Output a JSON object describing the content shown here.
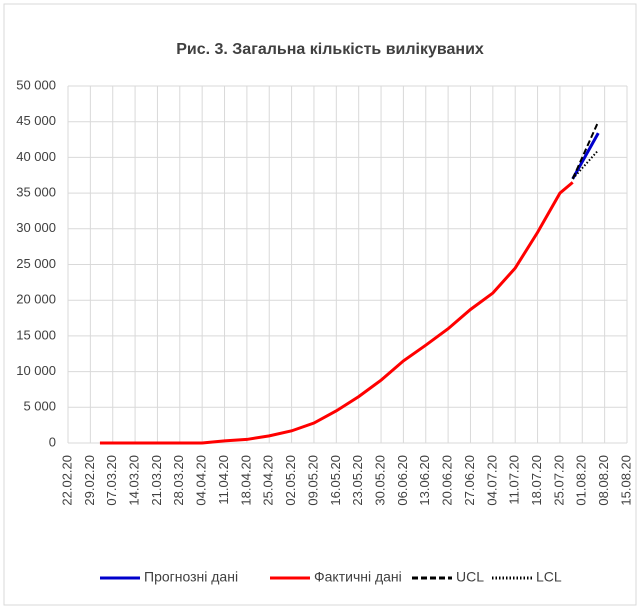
{
  "chart_data": {
    "type": "line",
    "title": "Рис. 3. Загальна кількість вилікуваних",
    "xlim": [
      "22.02.20",
      "15.08.20"
    ],
    "xticks": [
      "22.02.20",
      "29.02.20",
      "07.03.20",
      "14.03.20",
      "21.03.20",
      "28.03.20",
      "04.04.20",
      "11.04.20",
      "18.04.20",
      "25.04.20",
      "02.05.20",
      "09.05.20",
      "16.05.20",
      "23.05.20",
      "30.05.20",
      "06.06.20",
      "13.06.20",
      "20.06.20",
      "27.06.20",
      "04.07.20",
      "11.07.20",
      "18.07.20",
      "25.07.20",
      "01.08.20",
      "08.08.20",
      "15.08.20"
    ],
    "ylim": [
      0,
      50000
    ],
    "yticks": [
      {
        "value": 0,
        "label": "0"
      },
      {
        "value": 5000,
        "label": "5 000"
      },
      {
        "value": 10000,
        "label": "10 000"
      },
      {
        "value": 15000,
        "label": "15 000"
      },
      {
        "value": 20000,
        "label": "20 000"
      },
      {
        "value": 25000,
        "label": "25 000"
      },
      {
        "value": 30000,
        "label": "30 000"
      },
      {
        "value": 35000,
        "label": "35 000"
      },
      {
        "value": 40000,
        "label": "40 000"
      },
      {
        "value": 45000,
        "label": "45 000"
      },
      {
        "value": 50000,
        "label": "50 000"
      }
    ],
    "grid": true,
    "legend": "bottom",
    "series": [
      {
        "name": "Прогнозні дані",
        "color": "#0000cc",
        "dash": "solid",
        "x": [
          "29.07.20",
          "06.08.20"
        ],
        "values": [
          37000,
          43400
        ]
      },
      {
        "name": "Фактичні дані",
        "color": "#ff0000",
        "dash": "solid",
        "x": [
          "03.03.20",
          "04.04.20",
          "11.04.20",
          "18.04.20",
          "25.04.20",
          "02.05.20",
          "09.05.20",
          "16.05.20",
          "23.05.20",
          "30.05.20",
          "06.06.20",
          "13.06.20",
          "20.06.20",
          "27.06.20",
          "04.07.20",
          "11.07.20",
          "18.07.20",
          "25.07.20",
          "29.07.20"
        ],
        "values": [
          0,
          0,
          300,
          500,
          1000,
          1700,
          2800,
          4500,
          6500,
          8800,
          11500,
          13700,
          16000,
          18700,
          21000,
          24500,
          29500,
          35000,
          36500
        ]
      },
      {
        "name": "UCL",
        "color": "#000000",
        "dash": "dashed",
        "x": [
          "29.07.20",
          "06.08.20"
        ],
        "values": [
          37000,
          45000
        ]
      },
      {
        "name": "LCL",
        "color": "#000000",
        "dash": "dotted",
        "x": [
          "29.07.20",
          "06.08.20"
        ],
        "values": [
          37000,
          41000
        ]
      }
    ]
  }
}
